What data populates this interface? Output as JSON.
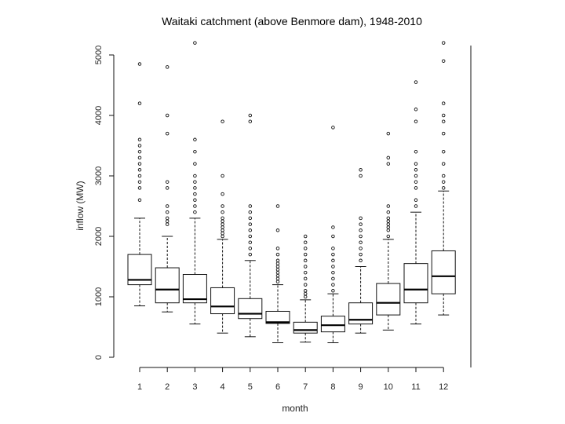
{
  "chart_data": {
    "type": "boxplot",
    "title": "Waitaki catchment (above Benmore dam), 1948-2010",
    "xlabel": "month",
    "ylabel": "inflow (MW)",
    "categories": [
      "1",
      "2",
      "3",
      "4",
      "5",
      "6",
      "7",
      "8",
      "9",
      "10",
      "11",
      "12"
    ],
    "yticks": [
      0,
      1000,
      2000,
      3000,
      4000,
      5000
    ],
    "ylim": [
      0,
      5200
    ],
    "grid": false,
    "boxes": [
      {
        "month": "1",
        "lower": 850,
        "q1": 1200,
        "median": 1280,
        "q3": 1700,
        "upper": 2300,
        "outliers": [
          2600,
          2800,
          2900,
          3000,
          3100,
          3200,
          3300,
          3400,
          3500,
          3600,
          4200,
          4850
        ]
      },
      {
        "month": "2",
        "lower": 750,
        "q1": 900,
        "median": 1120,
        "q3": 1480,
        "upper": 2000,
        "outliers": [
          2200,
          2250,
          2300,
          2400,
          2500,
          2800,
          2900,
          3700,
          4000,
          4800
        ]
      },
      {
        "month": "3",
        "lower": 550,
        "q1": 900,
        "median": 960,
        "q3": 1370,
        "upper": 2300,
        "outliers": [
          2400,
          2500,
          2600,
          2700,
          2800,
          2900,
          3000,
          3200,
          3400,
          3600,
          5200
        ]
      },
      {
        "month": "4",
        "lower": 400,
        "q1": 720,
        "median": 840,
        "q3": 1150,
        "upper": 1950,
        "outliers": [
          2000,
          2050,
          2100,
          2150,
          2200,
          2250,
          2300,
          2400,
          2500,
          2700,
          3000,
          3900
        ]
      },
      {
        "month": "5",
        "lower": 340,
        "q1": 640,
        "median": 720,
        "q3": 970,
        "upper": 1600,
        "outliers": [
          1700,
          1800,
          1900,
          2000,
          2100,
          2200,
          2300,
          2400,
          2500,
          3900,
          4000
        ]
      },
      {
        "month": "6",
        "lower": 240,
        "q1": 560,
        "median": 580,
        "q3": 760,
        "upper": 1200,
        "outliers": [
          1250,
          1300,
          1350,
          1400,
          1450,
          1500,
          1550,
          1600,
          1700,
          1800,
          2100,
          2500
        ]
      },
      {
        "month": "7",
        "lower": 250,
        "q1": 400,
        "median": 450,
        "q3": 580,
        "upper": 950,
        "outliers": [
          1000,
          1050,
          1100,
          1200,
          1300,
          1400,
          1500,
          1600,
          1700,
          1800,
          1900,
          2000
        ]
      },
      {
        "month": "8",
        "lower": 240,
        "q1": 420,
        "median": 530,
        "q3": 680,
        "upper": 1050,
        "outliers": [
          1100,
          1200,
          1300,
          1400,
          1500,
          1600,
          1700,
          1800,
          2000,
          2150,
          3800
        ]
      },
      {
        "month": "9",
        "lower": 400,
        "q1": 550,
        "median": 620,
        "q3": 900,
        "upper": 1500,
        "outliers": [
          1600,
          1700,
          1800,
          1900,
          2000,
          2100,
          2200,
          2300,
          3000,
          3100
        ]
      },
      {
        "month": "10",
        "lower": 450,
        "q1": 700,
        "median": 900,
        "q3": 1220,
        "upper": 1950,
        "outliers": [
          2000,
          2100,
          2150,
          2200,
          2250,
          2300,
          2400,
          2500,
          3200,
          3300,
          3700
        ]
      },
      {
        "month": "11",
        "lower": 550,
        "q1": 900,
        "median": 1120,
        "q3": 1550,
        "upper": 2400,
        "outliers": [
          2500,
          2600,
          2800,
          2900,
          3000,
          3100,
          3200,
          3400,
          3900,
          4100,
          4550
        ]
      },
      {
        "month": "12",
        "lower": 700,
        "q1": 1050,
        "median": 1340,
        "q3": 1760,
        "upper": 2750,
        "outliers": [
          2800,
          2900,
          3000,
          3200,
          3400,
          3700,
          3900,
          4000,
          4200,
          4900,
          5200
        ]
      }
    ]
  }
}
